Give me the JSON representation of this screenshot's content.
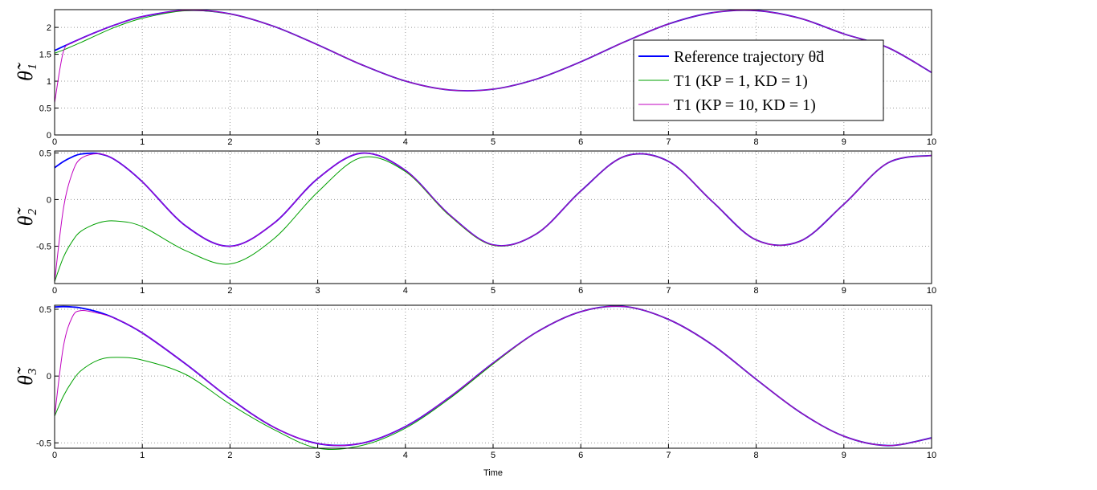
{
  "chart_data": [
    {
      "type": "line",
      "y_label": "θ̃₁",
      "x": [
        0,
        0.1,
        0.2,
        0.3,
        0.5,
        0.7,
        1,
        1.5,
        2,
        2.5,
        3,
        3.5,
        4,
        4.5,
        5,
        5.5,
        6,
        6.5,
        7,
        7.5,
        8,
        8.5,
        9,
        9.5,
        10
      ],
      "xlim": [
        0,
        10
      ],
      "xticks": [
        0,
        1,
        2,
        3,
        4,
        5,
        6,
        7,
        8,
        9,
        10
      ],
      "ylim": [
        0,
        2.33
      ],
      "yticks": [
        0,
        0.5,
        1,
        1.5,
        2
      ],
      "grid": true,
      "legend": "upper right",
      "series": [
        {
          "name": "Reference trajectory θ̃d",
          "color": "#0000ff",
          "values": [
            1.57,
            1.645,
            1.719,
            1.792,
            1.929,
            2.053,
            2.201,
            2.318,
            2.252,
            2.019,
            1.676,
            1.307,
            1.002,
            0.837,
            0.851,
            1.041,
            1.36,
            1.731,
            2.063,
            2.273,
            2.312,
            2.169,
            1.879,
            1.626,
            1.162
          ]
        },
        {
          "name": "T1  (KP = 1, KD = 1)",
          "color": "#00a000",
          "values": [
            1.52,
            1.58,
            1.65,
            1.72,
            1.87,
            2.01,
            2.17,
            2.31,
            2.25,
            2.019,
            1.676,
            1.307,
            1.002,
            0.837,
            0.851,
            1.041,
            1.36,
            1.731,
            2.063,
            2.273,
            2.312,
            2.169,
            1.879,
            1.626,
            1.162
          ]
        },
        {
          "name": "T1  (KP = 10, KD = 1)",
          "color": "#c000c0",
          "values": [
            0.6,
            1.55,
            1.71,
            1.79,
            1.929,
            2.053,
            2.201,
            2.318,
            2.252,
            2.019,
            1.676,
            1.307,
            1.002,
            0.837,
            0.851,
            1.041,
            1.36,
            1.731,
            2.063,
            2.273,
            2.312,
            2.169,
            1.879,
            1.626,
            1.162
          ]
        }
      ]
    },
    {
      "type": "line",
      "y_label": "θ̃₂",
      "x": [
        0,
        0.1,
        0.2,
        0.3,
        0.5,
        0.7,
        1,
        1.5,
        2,
        2.5,
        3,
        3.5,
        4,
        4.5,
        5,
        5.5,
        6,
        6.5,
        7,
        7.5,
        8,
        8.5,
        9,
        9.5,
        10
      ],
      "xlim": [
        0,
        10
      ],
      "xticks": [
        0,
        1,
        2,
        3,
        4,
        5,
        6,
        7,
        8,
        9,
        10
      ],
      "ylim": [
        -0.9,
        0.52
      ],
      "yticks": [
        -0.5,
        0,
        0.5
      ],
      "grid": true,
      "series": [
        {
          "color": "#0000ff",
          "values": [
            0.341,
            0.407,
            0.456,
            0.488,
            0.492,
            0.419,
            0.191,
            -0.286,
            -0.5,
            -0.254,
            0.225,
            0.497,
            0.312,
            -0.161,
            -0.486,
            -0.364,
            0.091,
            0.463,
            0.409,
            -0.021,
            -0.433,
            -0.446,
            -0.05,
            0.392,
            0.473
          ]
        },
        {
          "color": "#00a000",
          "values": [
            -0.88,
            -0.62,
            -0.45,
            -0.34,
            -0.25,
            -0.23,
            -0.29,
            -0.55,
            -0.69,
            -0.42,
            0.08,
            0.45,
            0.3,
            -0.17,
            -0.49,
            -0.364,
            0.091,
            0.463,
            0.409,
            -0.021,
            -0.433,
            -0.446,
            -0.05,
            0.392,
            0.473
          ]
        },
        {
          "color": "#c000c0",
          "values": [
            -0.88,
            -0.1,
            0.28,
            0.44,
            0.49,
            0.419,
            0.191,
            -0.286,
            -0.5,
            -0.254,
            0.225,
            0.497,
            0.312,
            -0.161,
            -0.486,
            -0.364,
            0.091,
            0.463,
            0.409,
            -0.021,
            -0.433,
            -0.446,
            -0.05,
            0.392,
            0.473
          ]
        }
      ]
    },
    {
      "type": "line",
      "y_label": "θ̃₃",
      "x_label": "Time",
      "x": [
        0,
        0.1,
        0.2,
        0.3,
        0.5,
        0.7,
        1,
        1.5,
        2,
        2.5,
        3,
        3.5,
        4,
        4.5,
        5,
        5.5,
        6,
        6.5,
        7,
        7.5,
        8,
        8.5,
        9,
        9.5,
        10
      ],
      "xlim": [
        0,
        10
      ],
      "xticks": [
        0,
        1,
        2,
        3,
        4,
        5,
        6,
        7,
        8,
        9,
        10
      ],
      "ylim": [
        -0.54,
        0.53
      ],
      "yticks": [
        -0.5,
        0,
        0.5
      ],
      "grid": true,
      "series": [
        {
          "color": "#0000ff",
          "values": [
            0.517,
            0.52,
            0.517,
            0.51,
            0.479,
            0.429,
            0.323,
            0.088,
            -0.168,
            -0.383,
            -0.505,
            -0.503,
            -0.378,
            -0.16,
            0.097,
            0.33,
            0.482,
            0.52,
            0.424,
            0.234,
            -0.024,
            -0.27,
            -0.45,
            -0.52,
            -0.463
          ]
        },
        {
          "color": "#00a000",
          "values": [
            -0.3,
            -0.15,
            -0.04,
            0.04,
            0.12,
            0.14,
            0.12,
            0.01,
            -0.21,
            -0.4,
            -0.54,
            -0.52,
            -0.39,
            -0.17,
            0.09,
            0.33,
            0.482,
            0.52,
            0.424,
            0.234,
            -0.024,
            -0.27,
            -0.45,
            -0.52,
            -0.463
          ]
        },
        {
          "color": "#c000c0",
          "values": [
            -0.3,
            0.22,
            0.44,
            0.49,
            0.47,
            0.429,
            0.323,
            0.088,
            -0.168,
            -0.383,
            -0.505,
            -0.503,
            -0.378,
            -0.16,
            0.097,
            0.33,
            0.482,
            0.52,
            0.424,
            0.234,
            -0.024,
            -0.27,
            -0.45,
            -0.52,
            -0.463
          ]
        }
      ]
    }
  ]
}
